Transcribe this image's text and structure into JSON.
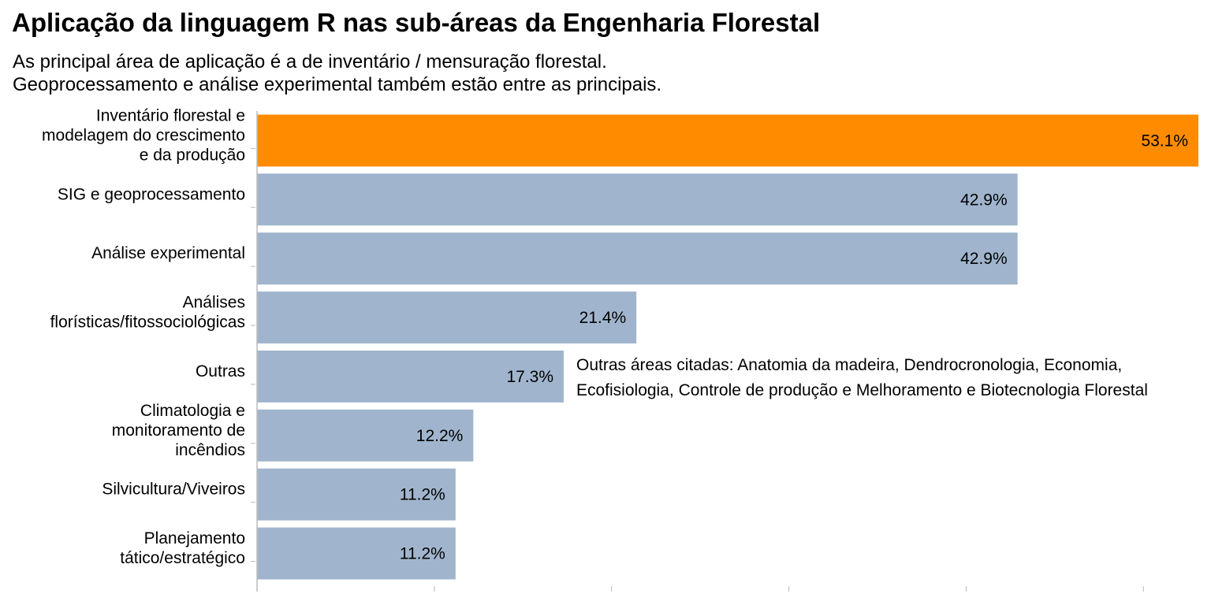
{
  "chart_data": {
    "type": "bar",
    "orientation": "horizontal",
    "title": "Aplicação da linguagem R nas sub-áreas da Engenharia Florestal",
    "subtitle": [
      "As principal área de aplicação é a de inventário / mensuração florestal.",
      "Geoprocessamento e análise experimental também estão entre as principais."
    ],
    "categories": [
      [
        "Inventário florestal e",
        "modelagem do crescimento",
        "e da produção"
      ],
      [
        "SIG e geoprocessamento"
      ],
      [
        "Análise experimental"
      ],
      [
        "Análises",
        "florísticas/fitossociológicas"
      ],
      [
        "Outras"
      ],
      [
        "Climatologia e",
        "monitoramento de",
        "incêndios"
      ],
      [
        "Silvicultura/Viveiros"
      ],
      [
        "Planejamento",
        "tático/estratégico"
      ]
    ],
    "values": [
      53.1,
      42.9,
      42.9,
      21.4,
      17.3,
      12.2,
      11.2,
      11.2
    ],
    "value_labels": [
      "53.1%",
      "42.9%",
      "42.9%",
      "21.4%",
      "17.3%",
      "12.2%",
      "11.2%",
      "11.2%"
    ],
    "xlim": [
      0,
      53.1
    ],
    "grid": false,
    "colors": {
      "highlight": "#FF8C00",
      "default": "#A0B5CD"
    },
    "highlight_index": 0,
    "annotation": {
      "category_index": 4,
      "lines": [
        "Outras áreas citadas: Anatomia da madeira, Dendrocronologia, Economia,",
        "Ecofisiologia, Controle de produção e Melhoramento e Biotecnologia Florestal"
      ]
    }
  }
}
